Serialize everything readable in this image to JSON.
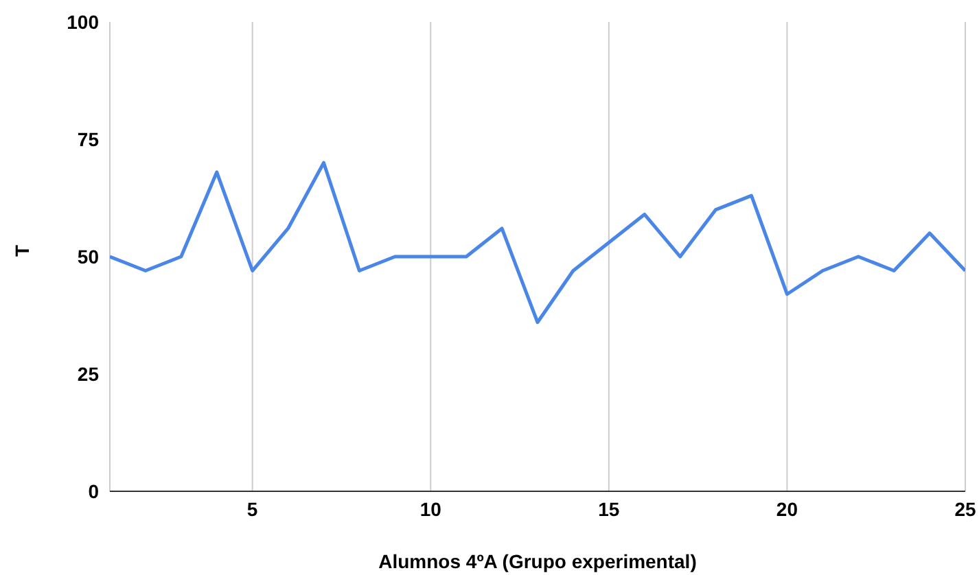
{
  "chart_data": {
    "type": "line",
    "xlabel": "Alumnos 4ºA (Grupo experimental)",
    "ylabel": "T",
    "x": [
      1,
      2,
      3,
      4,
      5,
      6,
      7,
      8,
      9,
      10,
      11,
      12,
      13,
      14,
      15,
      16,
      17,
      18,
      19,
      20,
      21,
      22,
      23,
      24,
      25
    ],
    "series": [
      {
        "color": "#4a86e8",
        "values": [
          50,
          47,
          50,
          68,
          47,
          56,
          70,
          47,
          50,
          50,
          50,
          56,
          36,
          47,
          53,
          59,
          50,
          60,
          63,
          42,
          47,
          50,
          47,
          55,
          47
        ]
      }
    ],
    "xlim": [
      1,
      25
    ],
    "xticks": [
      5,
      10,
      15,
      20,
      25
    ],
    "ylim": [
      0,
      100
    ],
    "yticks": [
      0,
      25,
      50,
      75,
      100
    ],
    "grid": "x",
    "legend": false,
    "marker": "none",
    "line_style": "solid"
  }
}
